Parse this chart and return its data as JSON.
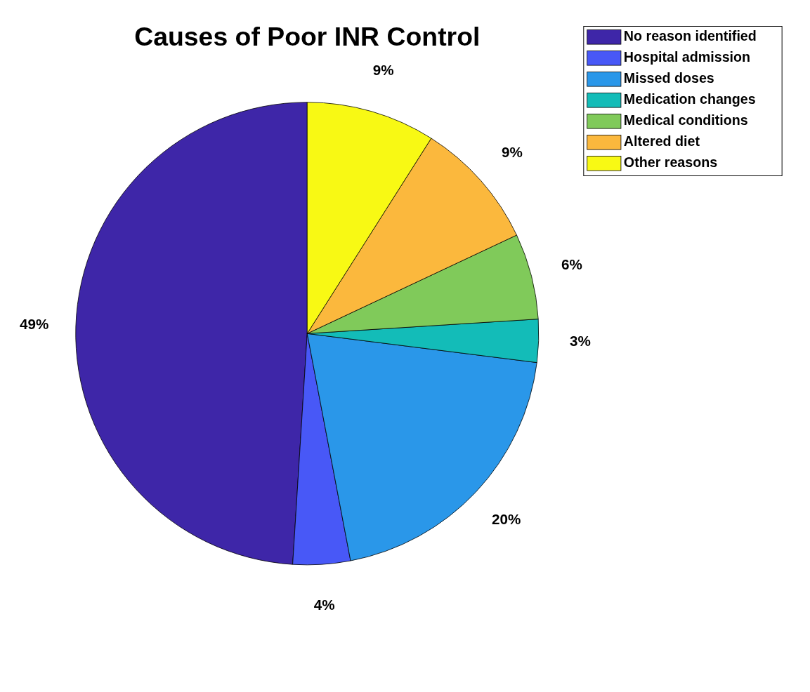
{
  "chart_data": {
    "type": "pie",
    "title": "Causes of Poor INR Control",
    "categories": [
      "No reason identified",
      "Hospital admission",
      "Missed doses",
      "Medication changes",
      "Medical conditions",
      "Altered diet",
      "Other reasons"
    ],
    "values": [
      49,
      4,
      20,
      3,
      6,
      9,
      9
    ],
    "colors": [
      "#3e26a8",
      "#4858f7",
      "#2a97e9",
      "#13bcb8",
      "#80ca5a",
      "#fbb83d",
      "#f8f914"
    ],
    "value_labels": [
      "49%",
      "4%",
      "20%",
      "3%",
      "6%",
      "9%",
      "9%"
    ],
    "legend": "top right"
  }
}
